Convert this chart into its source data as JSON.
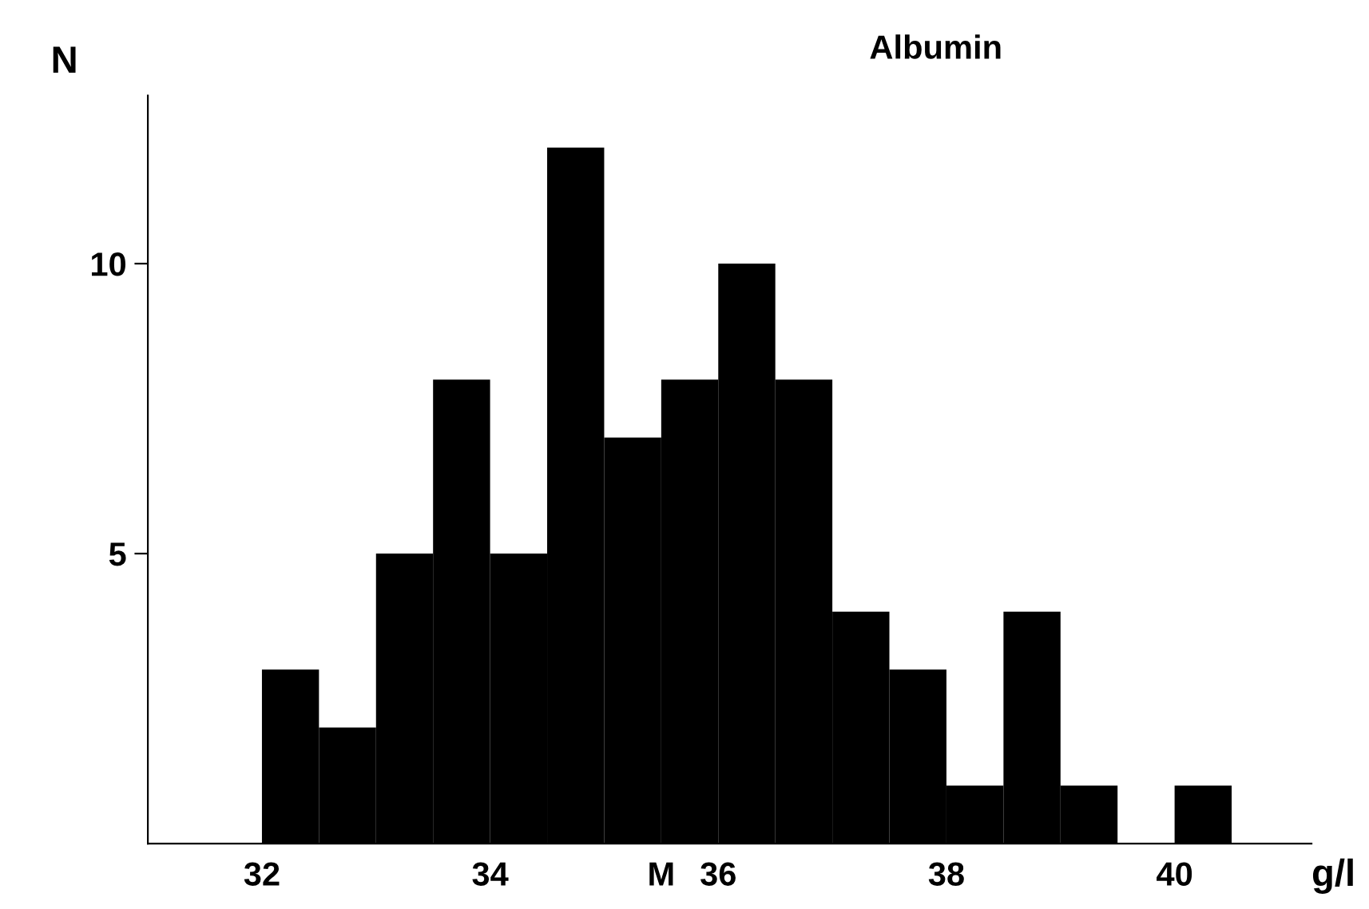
{
  "chart_data": {
    "type": "histogram",
    "title": "Albumin",
    "xlabel": "g/l",
    "ylabel": "N",
    "bins": [
      32,
      32.5,
      33,
      33.5,
      34,
      34.5,
      35,
      35.5,
      36,
      36.5,
      37,
      37.5,
      38,
      38.5,
      39,
      39.5,
      40,
      40.5
    ],
    "values": [
      3,
      2,
      5,
      8,
      5,
      12,
      7,
      8,
      10,
      8,
      4,
      3,
      1,
      4,
      1,
      0,
      1
    ],
    "color": "#000000",
    "xlim": [
      31,
      41.2
    ],
    "xticks": [
      32,
      34,
      36,
      38,
      40
    ],
    "ylim": [
      0,
      12.9
    ],
    "yticks": [
      5,
      10
    ],
    "annotations": [
      {
        "text": "M",
        "x": 35.5,
        "y": 0
      }
    ],
    "grid": false
  }
}
